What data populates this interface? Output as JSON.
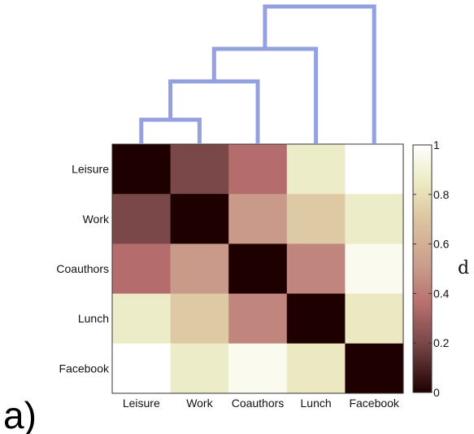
{
  "chart_data": {
    "type": "heatmap",
    "panel_label": "a)",
    "categories": [
      "Leisure",
      "Work",
      "Coauthors",
      "Lunch",
      "Facebook"
    ],
    "matrix": [
      [
        0.0,
        0.2,
        0.35,
        0.86,
        1.0
      ],
      [
        0.2,
        0.0,
        0.5,
        0.72,
        0.86
      ],
      [
        0.35,
        0.5,
        0.0,
        0.43,
        0.96
      ],
      [
        0.86,
        0.72,
        0.43,
        0.0,
        0.84
      ],
      [
        1.0,
        0.86,
        0.96,
        0.84,
        0.0
      ]
    ],
    "colorbar": {
      "label": "d",
      "range": [
        0,
        1
      ],
      "ticks": [
        "0",
        "0.2",
        "0.4",
        "0.6",
        "0.8",
        "1"
      ],
      "tick_values": [
        0,
        0.2,
        0.4,
        0.6,
        0.8,
        1
      ]
    },
    "dendrogram": {
      "color": "#94a0e0",
      "merges": [
        {
          "members": [
            "Leisure",
            "Work"
          ],
          "height": 1
        },
        {
          "members": [
            "Leisure",
            "Work",
            "Coauthors"
          ],
          "height": 2
        },
        {
          "members": [
            "Leisure",
            "Work",
            "Coauthors",
            "Lunch"
          ],
          "height": 3
        },
        {
          "members": [
            "Leisure",
            "Work",
            "Coauthors",
            "Lunch",
            "Facebook"
          ],
          "height": 4
        }
      ]
    },
    "colormap_stops": [
      [
        0.0,
        "#1e0000"
      ],
      [
        0.2,
        "#7a4848"
      ],
      [
        0.35,
        "#b56c6c"
      ],
      [
        0.5,
        "#c99a8a"
      ],
      [
        0.7,
        "#dcc4a0"
      ],
      [
        0.85,
        "#ecebc4"
      ],
      [
        1.0,
        "#ffffff"
      ]
    ]
  }
}
